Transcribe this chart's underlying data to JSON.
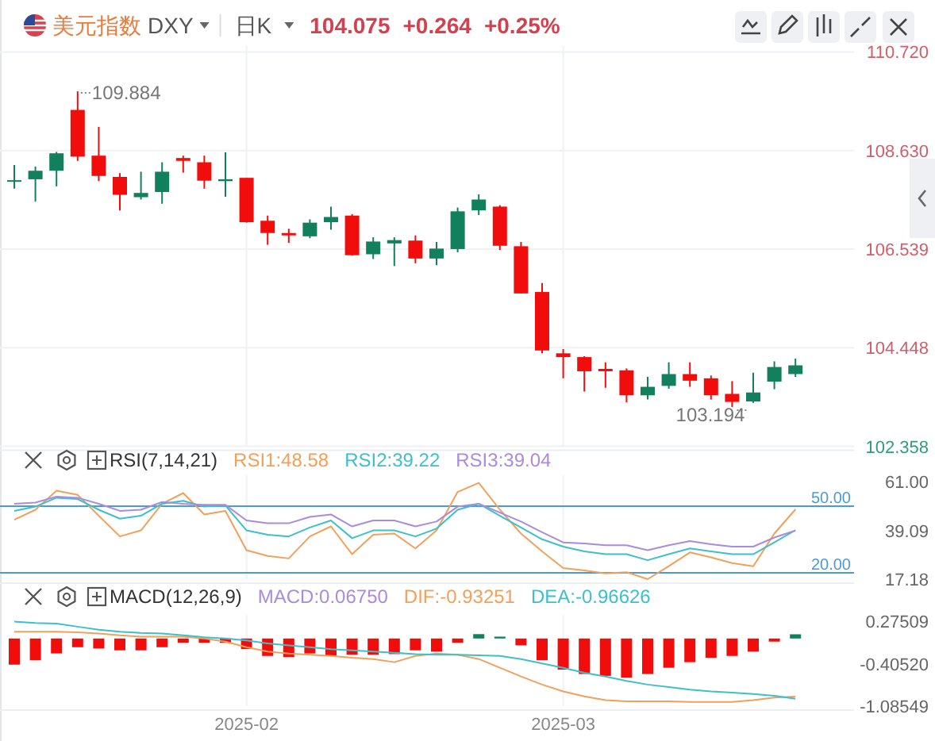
{
  "chart_data": [
    {
      "type": "candlestick",
      "title": "美元指数",
      "subtitle": "DXY",
      "annotations": [
        "日K",
        "104.075",
        "+0.264",
        "+0.25%",
        "109.884",
        "103.194"
      ],
      "categories": [
        null,
        null,
        null,
        null,
        null,
        null,
        null,
        null,
        null,
        null,
        null,
        "2025-02",
        null,
        null,
        null,
        null,
        null,
        null,
        null,
        null,
        null,
        null,
        null,
        null,
        null,
        null,
        "2025-03",
        null,
        null,
        null,
        null,
        null,
        null,
        null,
        null,
        null,
        null,
        null
      ],
      "ohlc": [
        [
          107.99,
          108.32,
          107.82,
          108.0
        ],
        [
          108.02,
          108.29,
          107.55,
          108.2
        ],
        [
          108.2,
          108.6,
          107.87,
          108.57
        ],
        [
          109.49,
          109.884,
          108.41,
          108.5
        ],
        [
          108.52,
          109.13,
          107.98,
          108.09
        ],
        [
          108.07,
          108.15,
          107.36,
          107.69
        ],
        [
          107.64,
          108.18,
          107.59,
          107.73
        ],
        [
          107.75,
          108.38,
          107.5,
          108.18
        ],
        [
          108.47,
          108.52,
          108.16,
          108.41
        ],
        [
          108.38,
          108.52,
          107.82,
          107.99
        ],
        [
          107.98,
          108.59,
          107.65,
          108.02
        ],
        [
          108.05,
          108.05,
          107.1,
          107.11
        ],
        [
          107.14,
          107.25,
          106.63,
          106.88
        ],
        [
          106.88,
          106.97,
          106.67,
          106.83
        ],
        [
          106.81,
          107.17,
          106.77,
          107.1
        ],
        [
          107.11,
          107.44,
          106.95,
          107.22
        ],
        [
          107.25,
          107.28,
          106.4,
          106.41
        ],
        [
          106.43,
          106.79,
          106.33,
          106.7
        ],
        [
          106.66,
          106.79,
          106.18,
          106.73
        ],
        [
          106.72,
          106.83,
          106.24,
          106.34
        ],
        [
          106.34,
          106.69,
          106.2,
          106.55
        ],
        [
          106.54,
          107.42,
          106.47,
          107.34
        ],
        [
          107.36,
          107.7,
          107.26,
          107.59
        ],
        [
          107.44,
          107.47,
          106.52,
          106.61
        ],
        [
          106.6,
          106.69,
          105.6,
          105.6
        ],
        [
          105.63,
          105.82,
          104.33,
          104.39
        ],
        [
          104.33,
          104.42,
          103.8,
          104.25
        ],
        [
          104.25,
          104.27,
          103.52,
          103.95
        ],
        [
          104.0,
          104.14,
          103.6,
          103.95
        ],
        [
          103.97,
          104.01,
          103.29,
          103.44
        ],
        [
          103.44,
          103.83,
          103.35,
          103.62
        ],
        [
          103.64,
          104.14,
          103.58,
          103.89
        ],
        [
          103.89,
          104.14,
          103.62,
          103.75
        ],
        [
          103.8,
          103.86,
          103.35,
          103.44
        ],
        [
          103.47,
          103.74,
          103.194,
          103.3
        ],
        [
          103.31,
          103.92,
          103.28,
          103.5
        ],
        [
          103.73,
          104.16,
          103.57,
          104.04
        ],
        [
          103.89,
          104.22,
          103.83,
          104.075
        ]
      ],
      "colors": [
        "#12805c",
        "#12805c",
        "#12805c",
        "#f20d0d",
        "#f20d0d",
        "#f20d0d",
        "#12805c",
        "#12805c",
        "#f20d0d",
        "#f20d0d",
        "#12805c",
        "#f20d0d",
        "#f20d0d",
        "#f20d0d",
        "#12805c",
        "#12805c",
        "#f20d0d",
        "#12805c",
        "#12805c",
        "#f20d0d",
        "#12805c",
        "#12805c",
        "#12805c",
        "#f20d0d",
        "#f20d0d",
        "#f20d0d",
        "#f20d0d",
        "#f20d0d",
        "#f20d0d",
        "#f20d0d",
        "#12805c",
        "#12805c",
        "#f20d0d",
        "#f20d0d",
        "#f20d0d",
        "#12805c",
        "#12805c",
        "#12805c"
      ],
      "ylim": [
        102.358,
        110.72
      ],
      "yticks": [
        {
          "value": 110.72,
          "label": "110.720"
        },
        {
          "value": 108.63,
          "label": "108.630"
        },
        {
          "value": 106.539,
          "label": "106.539"
        },
        {
          "value": 104.448,
          "label": "104.448"
        },
        {
          "value": 102.358,
          "label": "102.358"
        }
      ],
      "grid": true,
      "tick_labels": "y"
    },
    {
      "type": "line",
      "title": "RSI(7,14,21)",
      "categories": [
        null,
        null,
        null,
        null,
        null,
        null,
        null,
        null,
        null,
        null,
        null,
        "2025-02",
        null,
        null,
        null,
        null,
        null,
        null,
        null,
        null,
        null,
        null,
        null,
        null,
        null,
        null,
        "2025-03",
        null,
        null,
        null,
        null,
        null,
        null,
        null,
        null,
        null,
        null,
        null
      ],
      "series": [
        {
          "name": "RSI1:48.58",
          "color": "#f2a05a",
          "values": [
            43.9,
            48.4,
            57.0,
            55.1,
            45.7,
            36.4,
            39.1,
            51.1,
            55.9,
            46.3,
            47.9,
            30.2,
            27.6,
            26.5,
            36.4,
            40.9,
            28.4,
            37.2,
            37.7,
            31.0,
            39.1,
            56.4,
            60.5,
            48.4,
            37.7,
            29.7,
            22.2,
            21.1,
            19.8,
            20.3,
            17.18,
            23.0,
            29.2,
            27.0,
            24.4,
            23.0,
            37.7,
            48.58
          ]
        },
        {
          "name": "RSI2:39.22",
          "color": "#3dbfcc",
          "values": [
            47.9,
            49.8,
            53.8,
            53.2,
            48.4,
            44.4,
            45.7,
            51.1,
            52.4,
            49.8,
            50.3,
            39.1,
            37.2,
            36.4,
            40.4,
            43.6,
            35.6,
            39.1,
            39.1,
            36.4,
            39.9,
            48.4,
            51.1,
            45.7,
            40.4,
            35.1,
            31.8,
            29.7,
            28.4,
            28.4,
            25.7,
            28.4,
            31.0,
            29.7,
            28.4,
            28.4,
            33.7,
            39.22
          ]
        },
        {
          "name": "RSI3:39.04",
          "color": "#a98be0",
          "values": [
            51.1,
            51.6,
            54.3,
            53.8,
            51.1,
            47.9,
            48.4,
            51.9,
            51.1,
            50.6,
            50.6,
            43.6,
            42.3,
            42.3,
            45.2,
            46.3,
            40.9,
            43.6,
            43.6,
            40.9,
            43.1,
            49.8,
            51.1,
            47.1,
            43.1,
            38.3,
            33.7,
            33.2,
            32.4,
            32.4,
            30.2,
            32.4,
            34.3,
            32.9,
            31.8,
            31.8,
            35.9,
            39.04
          ]
        }
      ],
      "ylim": [
        17.18,
        61
      ],
      "yticks": [
        {
          "value": 61,
          "label": "61.00"
        },
        {
          "value": 39.09,
          "label": "39.09"
        },
        {
          "value": 17.18,
          "label": "17.18"
        }
      ],
      "ref_lines": [
        {
          "axis": "y",
          "value": 50,
          "label": "50.00",
          "color": "#4a9ad8"
        },
        {
          "axis": "y",
          "value": 20,
          "label": "20.00",
          "color": "#4a9ad8"
        }
      ],
      "grid": "x",
      "legend": "top",
      "tick_labels": "y"
    },
    {
      "type": "bar",
      "title": "MACD(12,26,9)",
      "categories": [
        null,
        null,
        null,
        null,
        null,
        null,
        null,
        null,
        null,
        null,
        null,
        "2025-02",
        null,
        null,
        null,
        null,
        null,
        null,
        null,
        null,
        null,
        null,
        null,
        null,
        null,
        null,
        "2025-03",
        null,
        null,
        null,
        null,
        null,
        null,
        null,
        null,
        null,
        null,
        null
      ],
      "series": [
        {
          "name": "MACD:0.06750",
          "type": "bar",
          "color": "#a98be0",
          "colors": [
            "#f20d0d",
            "#f20d0d",
            "#f20d0d",
            "#f20d0d",
            "#f20d0d",
            "#f20d0d",
            "#f20d0d",
            "#f20d0d",
            "#f20d0d",
            "#f20d0d",
            "#f20d0d",
            "#f20d0d",
            "#f20d0d",
            "#f20d0d",
            "#f20d0d",
            "#f20d0d",
            "#f20d0d",
            "#f20d0d",
            "#f20d0d",
            "#f20d0d",
            "#f20d0d",
            "#f20d0d",
            "#12805c",
            "#12805c",
            "#f20d0d",
            "#f20d0d",
            "#f20d0d",
            "#f20d0d",
            "#f20d0d",
            "#f20d0d",
            "#f20d0d",
            "#f20d0d",
            "#f20d0d",
            "#f20d0d",
            "#f20d0d",
            "#f20d0d",
            "#f20d0d",
            "#12805c"
          ],
          "values": [
            -0.42,
            -0.35,
            -0.24,
            -0.14,
            -0.16,
            -0.19,
            -0.19,
            -0.14,
            -0.07,
            -0.07,
            -0.07,
            -0.17,
            -0.28,
            -0.3,
            -0.24,
            -0.28,
            -0.26,
            -0.26,
            -0.25,
            -0.19,
            -0.21,
            -0.07,
            0.07,
            0.03,
            -0.11,
            -0.35,
            -0.5,
            -0.57,
            -0.6,
            -0.63,
            -0.57,
            -0.47,
            -0.38,
            -0.31,
            -0.28,
            -0.21,
            -0.05,
            0.0675
          ]
        },
        {
          "name": "DIF:-0.93251",
          "type": "line",
          "color": "#f2a05a",
          "values": [
            0.11,
            0.11,
            0.11,
            0.1,
            0.08,
            0.05,
            0.03,
            0.03,
            0.03,
            0.0,
            -0.05,
            -0.14,
            -0.21,
            -0.24,
            -0.26,
            -0.28,
            -0.31,
            -0.33,
            -0.38,
            -0.28,
            -0.24,
            -0.26,
            -0.33,
            -0.47,
            -0.61,
            -0.74,
            -0.85,
            -0.93,
            -0.99,
            -1.01,
            -1.01,
            -1.01,
            -1.02,
            -1.02,
            -1.02,
            -0.99,
            -0.95,
            -0.93251
          ]
        },
        {
          "name": "DEA:-0.96626",
          "type": "line",
          "color": "#3dbfcc",
          "values": [
            0.27,
            0.25,
            0.24,
            0.19,
            0.14,
            0.11,
            0.09,
            0.08,
            0.05,
            0.02,
            0.0,
            -0.03,
            -0.08,
            -0.11,
            -0.14,
            -0.17,
            -0.19,
            -0.21,
            -0.23,
            -0.25,
            -0.26,
            -0.26,
            -0.27,
            -0.28,
            -0.33,
            -0.4,
            -0.47,
            -0.55,
            -0.61,
            -0.68,
            -0.74,
            -0.78,
            -0.82,
            -0.85,
            -0.87,
            -0.89,
            -0.92,
            -0.96626
          ]
        }
      ],
      "ylim": [
        -1.08549,
        0.27509
      ],
      "yticks": [
        {
          "value": 0.27509,
          "label": "0.27509"
        },
        {
          "value": -0.4052,
          "label": "-0.40520"
        },
        {
          "value": -1.08549,
          "label": "-1.08549"
        }
      ],
      "grid": "x",
      "legend": "top"
    }
  ]
}
